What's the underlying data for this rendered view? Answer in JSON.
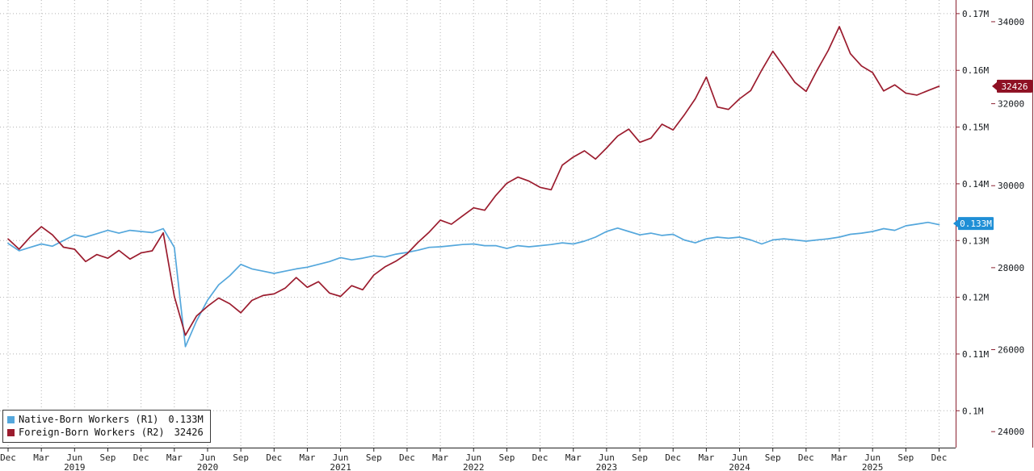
{
  "legend": {
    "items": [
      {
        "label": "Native-Born Workers (R1)",
        "value": "0.133M",
        "color": "#54a7dc"
      },
      {
        "label": "Foreign-Born Workers (R2)",
        "value": "32426",
        "color": "#9b1c2e"
      }
    ]
  },
  "chart_data": {
    "type": "line",
    "title": "",
    "x_unit": "month",
    "x_start_label": "Dec 2018",
    "x_end_label": "Dec 2025",
    "x_ticks": [
      {
        "m": 0,
        "label": "Dec"
      },
      {
        "m": 3,
        "label": "Mar"
      },
      {
        "m": 6,
        "label": "Jun"
      },
      {
        "m": 9,
        "label": "Sep"
      },
      {
        "m": 12,
        "label": "Dec"
      },
      {
        "m": 15,
        "label": "Mar"
      },
      {
        "m": 18,
        "label": "Jun"
      },
      {
        "m": 21,
        "label": "Sep"
      },
      {
        "m": 24,
        "label": "Dec"
      },
      {
        "m": 27,
        "label": "Mar"
      },
      {
        "m": 30,
        "label": "Jun"
      },
      {
        "m": 33,
        "label": "Sep"
      },
      {
        "m": 36,
        "label": "Dec"
      },
      {
        "m": 39,
        "label": "Mar"
      },
      {
        "m": 42,
        "label": "Jun"
      },
      {
        "m": 45,
        "label": "Sep"
      },
      {
        "m": 48,
        "label": "Dec"
      },
      {
        "m": 51,
        "label": "Mar"
      },
      {
        "m": 54,
        "label": "Jun"
      },
      {
        "m": 57,
        "label": "Sep"
      },
      {
        "m": 60,
        "label": "Dec"
      },
      {
        "m": 63,
        "label": "Mar"
      },
      {
        "m": 66,
        "label": "Jun"
      },
      {
        "m": 69,
        "label": "Sep"
      },
      {
        "m": 72,
        "label": "Dec"
      },
      {
        "m": 75,
        "label": "Mar"
      },
      {
        "m": 78,
        "label": "Jun"
      },
      {
        "m": 81,
        "label": "Sep"
      },
      {
        "m": 84,
        "label": "Dec"
      }
    ],
    "x_year_labels": [
      {
        "m": 6,
        "label": "2019"
      },
      {
        "m": 18,
        "label": "2020"
      },
      {
        "m": 30,
        "label": "2021"
      },
      {
        "m": 42,
        "label": "2022"
      },
      {
        "m": 54,
        "label": "2023"
      },
      {
        "m": 66,
        "label": "2024"
      },
      {
        "m": 78,
        "label": "2025"
      }
    ],
    "axes": {
      "r1": {
        "side": "right-inner",
        "unit": "M",
        "min": 0.0935,
        "max": 0.1724,
        "ticks": [
          {
            "v": 0.1,
            "label": "0.1M"
          },
          {
            "v": 0.11,
            "label": "0.11M"
          },
          {
            "v": 0.12,
            "label": "0.12M"
          },
          {
            "v": 0.13,
            "label": "0.13M"
          },
          {
            "v": 0.14,
            "label": "0.14M"
          },
          {
            "v": 0.15,
            "label": "0.15M"
          },
          {
            "v": 0.16,
            "label": "0.16M"
          },
          {
            "v": 0.17,
            "label": "0.17M"
          }
        ],
        "last_value": 0.133,
        "last_value_label": "0.133M",
        "badge_color": "#1f8fd6"
      },
      "r2": {
        "side": "right-outer",
        "min": 23610,
        "max": 34530,
        "ticks": [
          {
            "v": 24000,
            "label": "24000"
          },
          {
            "v": 26000,
            "label": "26000"
          },
          {
            "v": 28000,
            "label": "28000"
          },
          {
            "v": 30000,
            "label": "30000"
          },
          {
            "v": 32000,
            "label": "32000"
          },
          {
            "v": 34000,
            "label": "34000"
          }
        ],
        "last_value": 32426,
        "last_value_label": "32426",
        "badge_color": "#8e1023"
      }
    },
    "grid": {
      "horizontal_from": "r1",
      "vertical_from": "x_ticks",
      "style": "dotted"
    },
    "series": [
      {
        "name": "Native-Born Workers (R1)",
        "axis": "r1",
        "color": "#54a7dc",
        "values": [
          0.1295,
          0.1282,
          0.1288,
          0.1294,
          0.129,
          0.13,
          0.131,
          0.1306,
          0.1312,
          0.1318,
          0.1313,
          0.1318,
          0.1316,
          0.1314,
          0.1321,
          0.1288,
          0.1113,
          0.1158,
          0.1195,
          0.1222,
          0.1238,
          0.1258,
          0.125,
          0.1246,
          0.1242,
          0.1246,
          0.125,
          0.1253,
          0.1258,
          0.1263,
          0.127,
          0.1266,
          0.1269,
          0.1273,
          0.1271,
          0.1276,
          0.1279,
          0.1283,
          0.1288,
          0.1289,
          0.1291,
          0.1293,
          0.1294,
          0.1291,
          0.1291,
          0.1286,
          0.1291,
          0.1289,
          0.1291,
          0.1293,
          0.1296,
          0.1294,
          0.1299,
          0.1306,
          0.1316,
          0.1322,
          0.1316,
          0.131,
          0.1313,
          0.1309,
          0.1311,
          0.1301,
          0.1296,
          0.1303,
          0.1306,
          0.1304,
          0.1306,
          0.1301,
          0.1294,
          0.1301,
          0.1303,
          0.1301,
          0.1299,
          0.1301,
          0.1303,
          0.1306,
          0.1311,
          0.1313,
          0.1316,
          0.1321,
          0.1318,
          0.1326,
          0.1329,
          0.1332,
          0.1328
        ]
      },
      {
        "name": "Foreign-Born Workers (R2)",
        "axis": "r2",
        "color": "#9b1c2e",
        "values": [
          28700,
          28450,
          28750,
          29000,
          28800,
          28500,
          28450,
          28150,
          28320,
          28230,
          28420,
          28210,
          28360,
          28410,
          28850,
          27300,
          26350,
          26820,
          27060,
          27260,
          27120,
          26900,
          27200,
          27320,
          27360,
          27500,
          27760,
          27520,
          27660,
          27380,
          27300,
          27560,
          27460,
          27820,
          28020,
          28160,
          28340,
          28620,
          28870,
          29160,
          29060,
          29260,
          29460,
          29400,
          29760,
          30060,
          30210,
          30110,
          29960,
          29900,
          30500,
          30700,
          30850,
          30650,
          30920,
          31210,
          31380,
          31060,
          31160,
          31500,
          31360,
          31720,
          32120,
          32650,
          31920,
          31860,
          32120,
          32320,
          32820,
          33280,
          32900,
          32520,
          32300,
          32820,
          33300,
          33880,
          33220,
          32920,
          32760,
          32310,
          32460,
          32260,
          32210,
          32320,
          32426
        ]
      }
    ]
  }
}
